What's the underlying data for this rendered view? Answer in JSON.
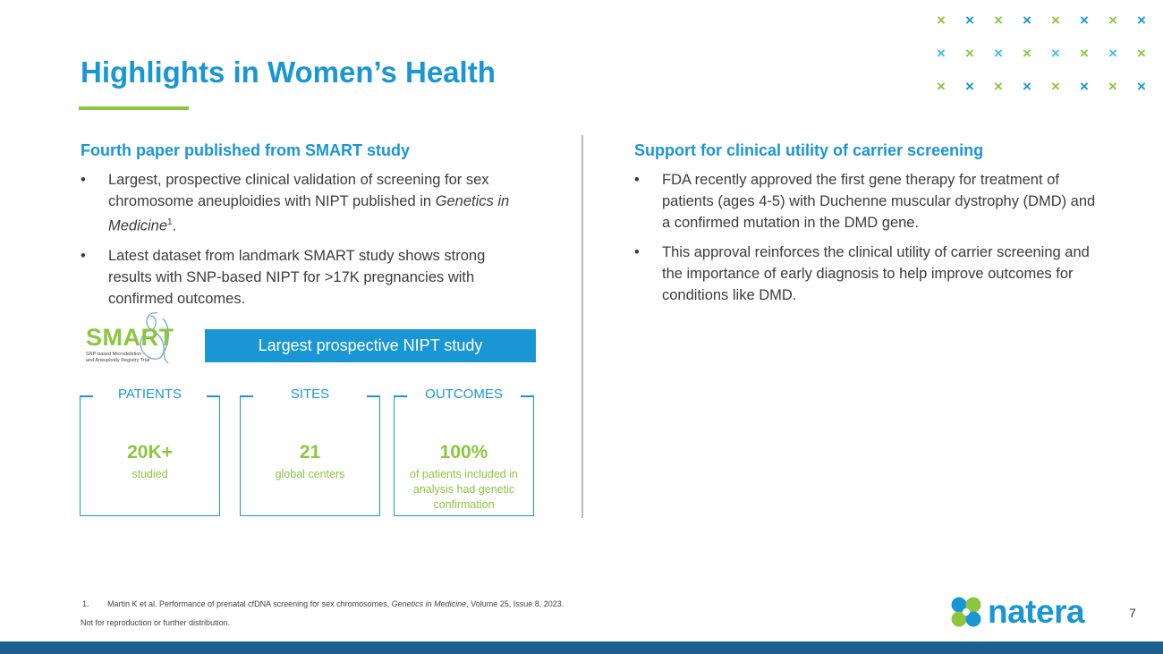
{
  "slide": {
    "title": "Highlights in Women’s Health",
    "page_number": "7",
    "accent_blue": "#1a96d4",
    "accent_green": "#8cc63f"
  },
  "decor": {
    "x_rows": [
      [
        "green",
        "blue",
        "green",
        "blue",
        "green",
        "blue",
        "green",
        "blue"
      ],
      [
        "cyan",
        "green",
        "cyan",
        "green",
        "cyan",
        "green",
        "cyan",
        "green"
      ],
      [
        "green",
        "blue",
        "green",
        "blue",
        "green",
        "blue",
        "green",
        "blue"
      ]
    ],
    "x_glyph": "×"
  },
  "left": {
    "heading": "Fourth paper published from SMART study",
    "bullet1": {
      "text_a": "Largest, prospective clinical validation of screening for sex chromosome aneuploidies with NIPT published in ",
      "text_italic": "Genetics in Medicine",
      "sup": "1",
      "text_b": "."
    },
    "bullet2": "Latest dataset from landmark SMART study shows strong results with SNP-based NIPT for >17K pregnancies with confirmed outcomes.",
    "logo": {
      "word": "SMART",
      "subtitle_line1": "SNP-based Microdeletion",
      "subtitle_line2": "and Aneuploidy Registry Trial"
    },
    "banner": "Largest prospective NIPT study",
    "stats": [
      {
        "label": "PATIENTS",
        "value": "20K+",
        "desc": "studied"
      },
      {
        "label": "SITES",
        "value": "21",
        "desc": "global centers"
      },
      {
        "label": "OUTCOMES",
        "value": "100%",
        "desc": "of patients included in analysis had genetic confirmation"
      }
    ]
  },
  "right": {
    "heading": "Support for clinical utility of carrier screening",
    "bullets": [
      "FDA recently approved the first gene therapy for treatment of patients (ages 4-5) with Duchenne muscular dystrophy (DMD) and a confirmed mutation in the DMD gene.",
      "This approval reinforces the clinical utility of carrier screening and the importance of early diagnosis to help improve outcomes for conditions like DMD."
    ]
  },
  "footer": {
    "footnote_num": "1.",
    "footnote_a": "Martin K et al. Performance of prenatal cfDNA screening for sex chromosomes, ",
    "footnote_italic": "Genetics in Medicine",
    "footnote_b": ", Volume 25, Issue 8, 2023.",
    "disclaimer": "Not for reproduction or further distribution.",
    "brand": "natera"
  }
}
